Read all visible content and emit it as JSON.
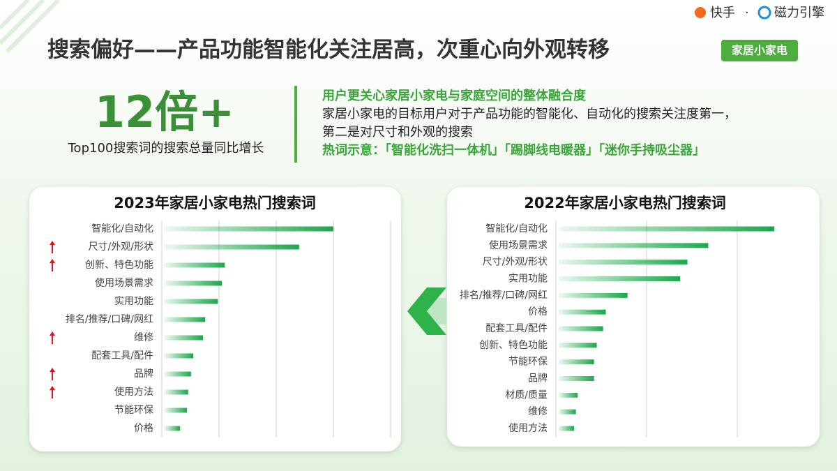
{
  "header": {
    "brand_left": "快手",
    "separator": "·",
    "brand_right": "磁力引擎",
    "title": "搜索偏好——产品功能智能化关注居高，次重心向外观转移",
    "tag": "家居小家电"
  },
  "highlight": {
    "number": "12倍+",
    "caption": "Top100搜索词的搜索总量同比增长"
  },
  "summary": {
    "heading": "用户更关心家居小家电与家庭空间的整体融合度",
    "lines": [
      "家居小家电的目标用户对于产品功能的智能化、自动化的搜索关注度第一，",
      "第二是对尺寸和外观的搜索"
    ],
    "hot_words": "热词示意：「智能化洗扫一体机」「踢脚线电暖器」「迷你手持吸尘器」"
  },
  "chart_data": [
    {
      "type": "bar",
      "orientation": "horizontal",
      "title": "2023年家居小家电热门搜索词",
      "categories": [
        "智能化/自动化",
        "尺寸/外观/形状",
        "创新、特色功能",
        "使用场景需求",
        "实用功能",
        "排名/推荐/口碑/网红",
        "维修",
        "配套工具/配件",
        "品牌",
        "使用方法",
        "节能环保",
        "价格"
      ],
      "values": [
        3.0,
        2.4,
        1.1,
        1.05,
        0.98,
        0.76,
        0.72,
        0.55,
        0.51,
        0.46,
        0.44,
        0.32
      ],
      "rising": [
        false,
        true,
        true,
        false,
        false,
        false,
        true,
        false,
        true,
        true,
        false,
        false
      ],
      "xlim": [
        0,
        4
      ],
      "xticks": [
        0,
        1,
        2,
        3,
        4
      ],
      "grid": true,
      "color": "#1aa84a"
    },
    {
      "type": "bar",
      "orientation": "horizontal",
      "title": "2022年家居小家电热门搜索词",
      "categories": [
        "智能化/自动化",
        "使用场景需求",
        "尺寸/外观/形状",
        "实用功能",
        "排名/推荐/口碑/网红",
        "价格",
        "配套工具/配件",
        "创新、特色功能",
        "节能环保",
        "品牌",
        "材质/质量",
        "维修",
        "使用方法"
      ],
      "values": [
        2.41,
        1.68,
        1.45,
        1.37,
        0.79,
        0.55,
        0.52,
        0.45,
        0.42,
        0.42,
        0.24,
        0.22,
        0.2
      ],
      "xlim": [
        0,
        2.8
      ],
      "xticks": [
        0,
        1,
        2
      ],
      "grid": true,
      "color": "#1aa84a"
    }
  ]
}
